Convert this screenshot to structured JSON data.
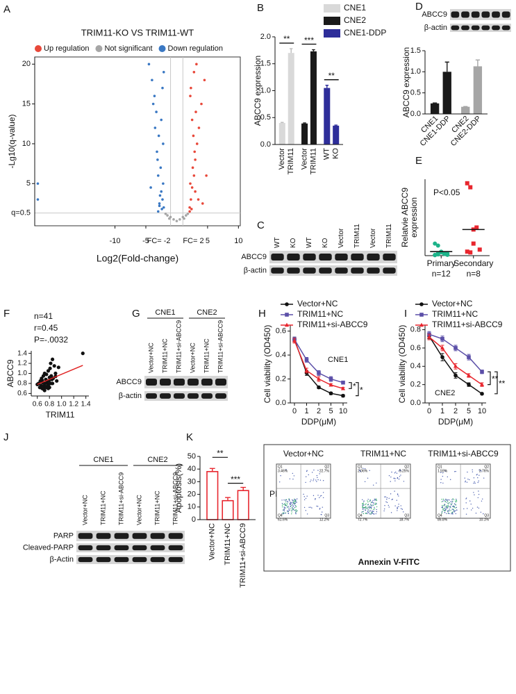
{
  "chart_data": [
    {
      "panel": "A",
      "type": "volcano",
      "title": "TRIM11-KO VS TRIM11-WT",
      "x_label": "Log2(Fold-change)",
      "y_label": "-Lg10(q-value)",
      "xlim": [
        -23,
        10.3
      ],
      "ylim": [
        -0.3,
        20.9
      ],
      "xticks": [
        -10,
        -5,
        5,
        10
      ],
      "yticks": [
        5,
        10,
        15,
        20
      ],
      "vlines": [
        {
          "value": -1,
          "label": "FC= -2"
        },
        {
          "value": 1,
          "label": "FC= 2"
        }
      ],
      "hlines": [
        {
          "value": 1.3,
          "label": "q=0.5"
        }
      ],
      "series": [
        {
          "name": "Up regulation",
          "color": "#e8483a",
          "x": [
            2.1,
            2.3,
            2.5,
            2.8,
            3.0,
            3.3,
            3.6,
            4.0,
            4.5,
            2.2,
            2.6,
            2.9,
            3.2,
            2.4,
            2.7,
            3.1,
            2.2,
            2.5,
            3.5,
            2.3,
            2.8,
            4.2,
            2.1,
            3.0,
            4.8
          ],
          "y": [
            2,
            3,
            4.5,
            6,
            8,
            10,
            12,
            15,
            18,
            5,
            7,
            9,
            20,
            1.8,
            11,
            14,
            16,
            13,
            3,
            17,
            19,
            2.5,
            1.5,
            4,
            6
          ]
        },
        {
          "name": "Not significant",
          "color": "#a6a6a6",
          "x": [
            -1.5,
            -1,
            -0.5,
            0,
            0.5,
            1,
            1.5,
            -1.8,
            1.8,
            -1.2,
            1.2
          ],
          "y": [
            1,
            0.8,
            0.5,
            0.3,
            0.5,
            0.8,
            1,
            1.2,
            1.2,
            0.6,
            0.6
          ]
        },
        {
          "name": "Down regulation",
          "color": "#3a78c3",
          "x": [
            -2.1,
            -2.3,
            -2.5,
            -2.8,
            -3.0,
            -3.2,
            -3.5,
            -3.8,
            -4.0,
            -4.5,
            -2.2,
            -2.6,
            -2.9,
            -3.3,
            -2.4,
            -2.7,
            -3.1,
            -2.2,
            -2.5,
            -3.6,
            -2.3,
            -2.8,
            -4.2,
            -2.1,
            -3.0,
            -22.5,
            -22.5
          ],
          "y": [
            2,
            3,
            4,
            2.5,
            6,
            9,
            12,
            15,
            18,
            20,
            5,
            7,
            11,
            14,
            1.8,
            3.5,
            8,
            10,
            13,
            16,
            17,
            2.2,
            4.5,
            19,
            1.5,
            5,
            3
          ]
        }
      ]
    },
    {
      "panel": "B",
      "type": "bar",
      "y_label": "ABCC9 expression",
      "ylim": [
        0,
        2
      ],
      "yticks": [
        {
          "value": 0,
          "label": "0.0"
        },
        0.5,
        {
          "value": 1,
          "label": "1.0"
        },
        1.5,
        {
          "value": 2,
          "label": "2.0"
        }
      ],
      "series": [
        {
          "name": "CNE1",
          "color": "#d9d9d9",
          "categories": [
            "Vector",
            "TRIM11"
          ],
          "values": [
            0.4,
            1.7
          ],
          "errors": [
            0.01,
            0.08
          ],
          "significance": "**"
        },
        {
          "name": "CNE2",
          "color": "#1a1a1a",
          "categories": [
            "Vector",
            "TRIM11"
          ],
          "values": [
            0.39,
            1.73
          ],
          "errors": [
            0.01,
            0.03
          ],
          "significance": "***"
        },
        {
          "name": "CNE1-DDP",
          "color": "#2e2e9a",
          "categories": [
            "WT",
            "KO"
          ],
          "values": [
            1.05,
            0.35
          ],
          "errors": [
            0.05,
            0.01
          ],
          "significance": "**"
        }
      ]
    },
    {
      "panel": "D",
      "type": "bar",
      "y_label": "ABCC9 expression",
      "ylim": [
        0,
        1.5
      ],
      "yticks": [
        {
          "value": 0,
          "label": "0.0"
        },
        0.5,
        {
          "value": 1,
          "label": "1.0"
        },
        1.5
      ],
      "series": [
        {
          "color": "#1a1a1a",
          "categories": [
            "CNE1",
            "CNE1-DDP"
          ],
          "values": [
            0.25,
            1.0
          ],
          "errors": [
            0.01,
            0.23
          ]
        },
        {
          "color": "#a6a6a6",
          "categories": [
            "CNE2",
            "CNE2-DDP"
          ],
          "values": [
            0.17,
            1.13
          ],
          "errors": [
            0.005,
            0.15
          ]
        }
      ]
    },
    {
      "panel": "E",
      "type": "dots",
      "y_label": [
        "Relatvie ABCC9",
        "expression"
      ],
      "ylim": [
        0,
        1.9
      ],
      "annotation": "P<0.05",
      "groups": [
        {
          "category": "Primary",
          "n_label": "n=12",
          "color": "#1db38a",
          "marker": "circle",
          "values": [
            0.3,
            0.25,
            0.1,
            0.05,
            0.05,
            0.02,
            0.03,
            0.08,
            0.04,
            0.02,
            0.01,
            0.06
          ],
          "mean": 0.1
        },
        {
          "category": "Secondary",
          "n_label": "n=8",
          "color": "#e8262e",
          "marker": "square",
          "values": [
            1.8,
            1.7,
            0.65,
            0.7,
            0.15,
            0.1,
            0.08,
            0.3
          ],
          "mean": 0.65
        }
      ]
    },
    {
      "panel": "F",
      "type": "scatter",
      "x_label": "TRIM11",
      "y_label": "ABCC9",
      "annotations": [
        "n=41",
        "r=0.45",
        "P=-.0032"
      ],
      "xlim": [
        0.5,
        1.45
      ],
      "ylim": [
        0.55,
        1.45
      ],
      "xticks": [
        0.6,
        0.8,
        {
          "value": 1,
          "label": "1.0"
        },
        1.2,
        1.4
      ],
      "yticks": [
        0.6,
        0.8,
        {
          "value": 1,
          "label": "1.0"
        },
        1.2,
        1.4
      ],
      "color": "#111111",
      "x": [
        0.6,
        0.62,
        0.64,
        0.65,
        0.66,
        0.67,
        0.68,
        0.69,
        0.7,
        0.7,
        0.71,
        0.72,
        0.72,
        0.73,
        0.74,
        0.75,
        0.75,
        0.76,
        0.77,
        0.78,
        0.78,
        0.79,
        0.8,
        0.8,
        0.81,
        0.82,
        0.83,
        0.84,
        0.85,
        0.86,
        0.88,
        0.9,
        0.92,
        0.95,
        0.72,
        0.68,
        0.78,
        0.85,
        0.9,
        0.82,
        1.35
      ],
      "y": [
        0.78,
        0.8,
        0.72,
        0.85,
        0.76,
        0.9,
        0.7,
        0.82,
        0.75,
        0.95,
        0.68,
        0.8,
        1.0,
        0.74,
        0.88,
        0.72,
        0.98,
        0.82,
        0.79,
        0.76,
        1.05,
        0.85,
        0.72,
        0.92,
        1.1,
        0.8,
        0.95,
        0.88,
        1.28,
        0.9,
        1.15,
        1.0,
        0.85,
        1.12,
        0.66,
        0.86,
        0.7,
        0.8,
        0.94,
        1.2,
        1.4
      ],
      "fit": {
        "color": "#e02020",
        "x": [
          0.6,
          1.35
        ],
        "y": [
          0.78,
          1.16
        ]
      }
    },
    {
      "panel": "H",
      "type": "line",
      "inner_label": "CNE1",
      "x_label": "DDP(μM)",
      "y_label": "Cell viability (OD450)",
      "categories": [
        "0",
        "1",
        "2",
        "5",
        "10"
      ],
      "ylim": [
        0,
        0.65
      ],
      "yticks": [
        {
          "value": 0,
          "label": "0.0"
        },
        0.2,
        0.4,
        0.6
      ],
      "series": [
        {
          "name": "Vector+NC",
          "color": "#111111",
          "marker": "circle",
          "values": [
            0.53,
            0.25,
            0.13,
            0.08,
            0.06
          ],
          "errors": [
            0.02,
            0.02,
            0.01,
            0.01,
            0.01
          ]
        },
        {
          "name": "TRIM11+NC",
          "color": "#5b4fa8",
          "marker": "square",
          "values": [
            0.53,
            0.36,
            0.25,
            0.2,
            0.17
          ],
          "errors": [
            0.02,
            0.02,
            0.02,
            0.02,
            0.01
          ]
        },
        {
          "name": "TRIM11+si-ABCC9",
          "color": "#e8262e",
          "marker": "triangle",
          "values": [
            0.52,
            0.27,
            0.2,
            0.15,
            0.12
          ],
          "errors": [
            0.02,
            0.02,
            0.02,
            0.01,
            0.01
          ]
        }
      ],
      "significance": [
        "*",
        "*"
      ]
    },
    {
      "panel": "I",
      "type": "line",
      "inner_label": "CNE2",
      "x_label": "DDP(μM)",
      "y_label": "Cell viability (OD450)",
      "categories": [
        "0",
        "1",
        "2",
        "5",
        "10"
      ],
      "ylim": [
        0,
        0.85
      ],
      "yticks": [
        {
          "value": 0,
          "label": "0.0"
        },
        0.2,
        0.4,
        0.6,
        0.8
      ],
      "series": [
        {
          "name": "Vector+NC",
          "color": "#111111",
          "marker": "circle",
          "values": [
            0.73,
            0.5,
            0.3,
            0.2,
            0.1
          ],
          "errors": [
            0.03,
            0.04,
            0.03,
            0.02,
            0.01
          ]
        },
        {
          "name": "TRIM11+NC",
          "color": "#5b4fa8",
          "marker": "square",
          "values": [
            0.75,
            0.7,
            0.6,
            0.5,
            0.34
          ],
          "errors": [
            0.03,
            0.03,
            0.03,
            0.03,
            0.02
          ]
        },
        {
          "name": "TRIM11+si-ABCC9",
          "color": "#e8262e",
          "marker": "triangle",
          "values": [
            0.72,
            0.6,
            0.4,
            0.3,
            0.2
          ],
          "errors": [
            0.03,
            0.03,
            0.03,
            0.02,
            0.02
          ]
        }
      ],
      "significance": [
        "**",
        "**"
      ]
    },
    {
      "panel": "K",
      "type": "bar",
      "outline": true,
      "y_label": "Apoptosis(%)",
      "ylim": [
        0,
        50
      ],
      "yticks": [
        0,
        10,
        20,
        30,
        40,
        50
      ],
      "series": [
        {
          "color": "#e8262e",
          "categories": [
            "Vector+NC",
            "TRIM11+NC",
            "TRIM11+si-ABCC9"
          ],
          "values": [
            38,
            15,
            23
          ],
          "errors": [
            2.5,
            2.5,
            2.5
          ],
          "significance": [
            "**",
            "***"
          ]
        }
      ]
    }
  ],
  "blots": [
    {
      "panel": "C",
      "lanes": [
        "WT",
        "KO",
        "WT",
        "KO",
        "Vector",
        "TRIM11",
        "Vector",
        "TRIM11"
      ],
      "rows": [
        "ABCC9",
        "β-actin"
      ]
    },
    {
      "rows": [
        "ABCC9",
        "β-actin"
      ]
    },
    {
      "panel": "G",
      "groups": [
        "CNE1",
        "CNE2"
      ],
      "lanes": [
        "Vector+NC",
        "TRIM11+NC",
        "TRIM11+si-ABCC9",
        "Vector+NC",
        "TRIM11+NC",
        "TRIM11+si-ABCC9"
      ],
      "rows": [
        "ABCC9",
        "β-actin"
      ]
    },
    {
      "panel": "J",
      "groups": [
        "CNE1",
        "CNE2"
      ],
      "lanes": [
        "Vector+NC",
        "TRIM11+NC",
        "TRIM11+si-ABCC9",
        "Vector+NC",
        "TRIM11+NC",
        "TRIM11+si-ABCC9"
      ],
      "rows": [
        "PARP",
        "Cleaved-PARP",
        "β-Actin"
      ]
    }
  ],
  "flow": {
    "x_label": "Annexin V-FITC",
    "y_label": "PI",
    "plots": [
      {
        "title": "Vector+NC",
        "quadrants": [
          {
            "name": "Q1",
            "value": "3.46%"
          },
          {
            "name": "Q2",
            "value": "22.7%"
          },
          {
            "name": "Q4",
            "value": "61.6%"
          },
          {
            "name": "Q3",
            "value": "12.2%"
          }
        ]
      },
      {
        "title": "TRIM11+NC",
        "quadrants": [
          {
            "name": "Q1",
            "value": "2.06%"
          },
          {
            "name": "Q2",
            "value": "5.25%"
          },
          {
            "name": "Q4",
            "value": "72.7%"
          },
          {
            "name": "Q3",
            "value": "18.7%"
          }
        ]
      },
      {
        "title": "TRIM11+si-ABCC9",
        "quadrants": [
          {
            "name": "Q1",
            "value": "1.59%"
          },
          {
            "name": "Q2",
            "value": "2.76%"
          },
          {
            "name": "Q4",
            "value": "85.8%"
          },
          {
            "name": "Q3",
            "value": "10.1%"
          }
        ]
      }
    ]
  }
}
